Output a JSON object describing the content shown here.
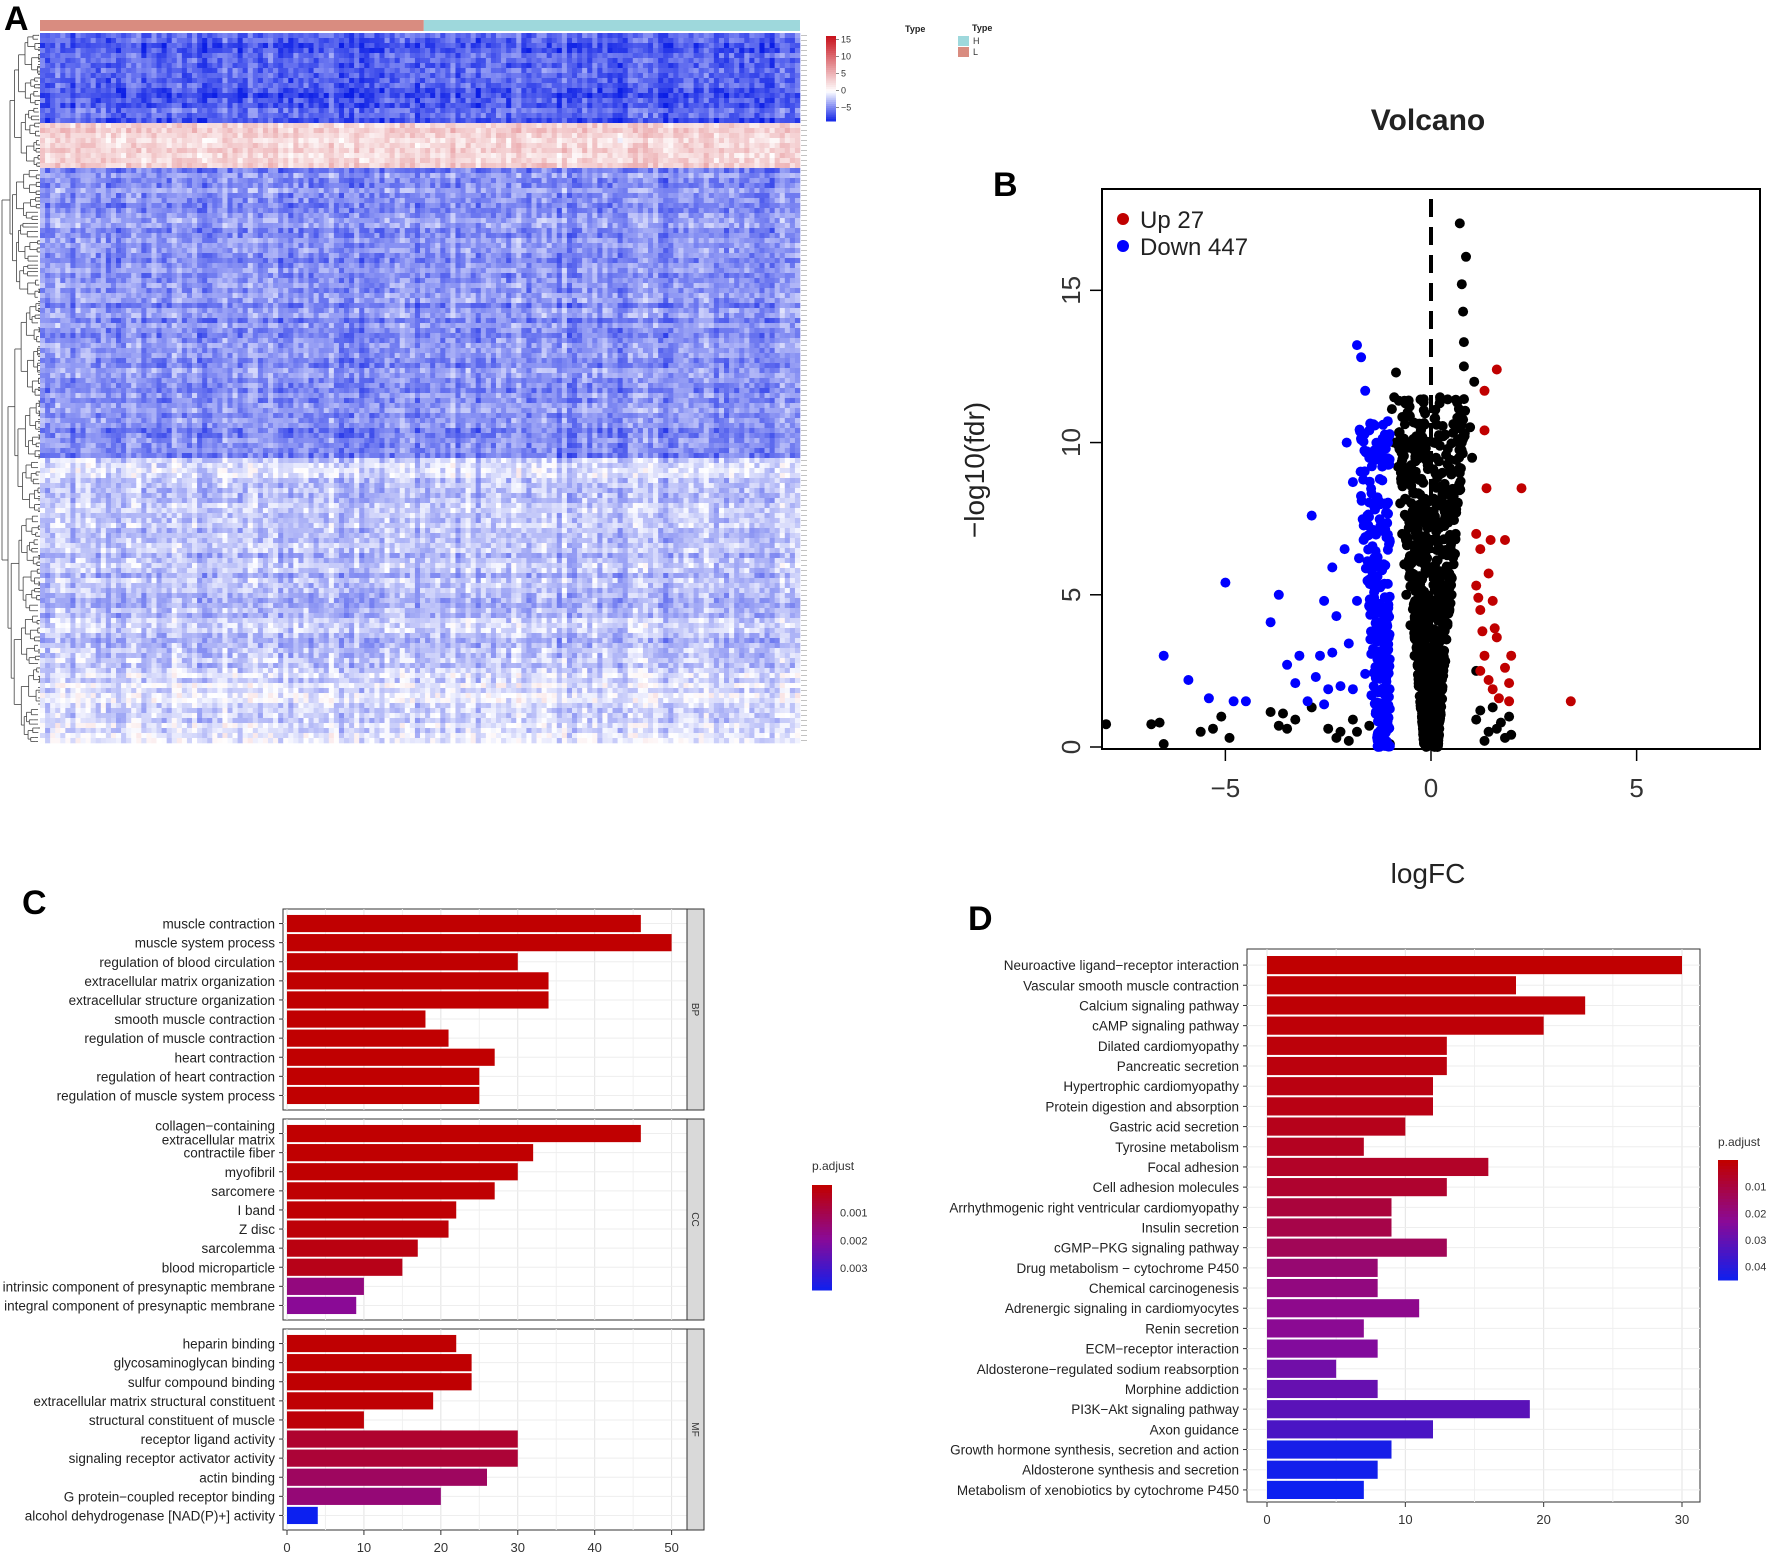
{
  "panels": {
    "a": "A",
    "b": "B",
    "c": "C",
    "d": "D"
  },
  "heatmap": {
    "type_annotation_label": "Type",
    "legend_title": "Type",
    "groups": [
      {
        "name": "L",
        "color": "#d98c80"
      },
      {
        "name": "H",
        "color": "#9ed8dc"
      }
    ],
    "color_scale": {
      "colors": [
        "#0b1ee6",
        "#ffffff",
        "#c8141e"
      ],
      "ticks": [
        15,
        10,
        5,
        0,
        -5
      ],
      "range": [
        -9,
        16
      ]
    }
  },
  "chart_data": [
    {
      "type": "heatmap",
      "title": "",
      "groups": [
        "L",
        "H"
      ],
      "row_blocks": [
        {
          "rows": "1-34",
          "tendency": "low"
        },
        {
          "rows": "35-52",
          "tendency": "high"
        },
        {
          "rows": "53-168",
          "tendency": "low"
        },
        {
          "rows": "169-254",
          "tendency": "mixed"
        },
        {
          "rows": "255-275",
          "tendency": "mixed"
        }
      ]
    },
    {
      "type": "scatter",
      "title": "Volcano",
      "xlabel": "logFC",
      "ylabel": "−log10(fdr)",
      "xlim": [
        -8,
        8
      ],
      "ylim": [
        0,
        18
      ],
      "xticks": [
        "−5",
        "0",
        "5"
      ],
      "yticks": [
        "0",
        "5",
        "10",
        "15"
      ],
      "legend": {
        "position": "top-left",
        "entries": [
          {
            "name": "Up 27",
            "color": "#c00000"
          },
          {
            "name": "Down 447",
            "color": "#0000ff"
          }
        ]
      },
      "series": [
        {
          "name": "Up 27",
          "color": "#c00000",
          "points": [
            [
              3.4,
              1.5
            ],
            [
              2.2,
              8.5
            ],
            [
              1.8,
              6.8
            ],
            [
              1.6,
              12.4
            ],
            [
              1.3,
              10.4
            ],
            [
              1.1,
              7.0
            ],
            [
              1.4,
              5.7
            ],
            [
              1.5,
              4.8
            ],
            [
              1.2,
              4.5
            ],
            [
              1.6,
              3.6
            ],
            [
              1.3,
              3.0
            ],
            [
              1.8,
              2.6
            ],
            [
              1.4,
              2.2
            ],
            [
              1.5,
              1.9
            ],
            [
              1.2,
              2.5
            ],
            [
              1.35,
              8.5
            ],
            [
              1.45,
              6.8
            ],
            [
              1.1,
              5.3
            ],
            [
              1.2,
              6.5
            ],
            [
              1.25,
              3.8
            ],
            [
              1.9,
              2.1
            ],
            [
              1.55,
              3.9
            ],
            [
              1.65,
              1.6
            ],
            [
              1.95,
              3.0
            ],
            [
              1.3,
              11.7
            ],
            [
              1.15,
              4.9
            ],
            [
              1.9,
              1.5
            ]
          ]
        },
        {
          "name": "Down 447",
          "color": "#0000ff",
          "points": [
            [
              -5.0,
              5.4
            ],
            [
              -6.5,
              3.0
            ],
            [
              -5.9,
              2.2
            ],
            [
              -4.8,
              1.5
            ],
            [
              -3.7,
              5.0
            ],
            [
              -3.2,
              3.0
            ],
            [
              -3.9,
              4.1
            ],
            [
              -2.9,
              7.6
            ],
            [
              -2.7,
              3.0
            ],
            [
              -2.6,
              1.4
            ],
            [
              -2.4,
              5.9
            ],
            [
              -1.7,
              12.8
            ],
            [
              -1.6,
              11.7
            ],
            [
              -1.8,
              13.2
            ],
            [
              -1.4,
              10.6
            ],
            [
              -2.3,
              4.3
            ],
            [
              -2.8,
              2.3
            ],
            [
              -3.5,
              2.7
            ],
            [
              -2.5,
              1.9
            ],
            [
              -5.4,
              1.6
            ],
            [
              -4.5,
              1.5
            ],
            [
              -3.0,
              1.5
            ],
            [
              -1.5,
              9.5
            ],
            [
              -1.9,
              8.7
            ],
            [
              -1.3,
              8.2
            ],
            [
              -2.1,
              6.5
            ],
            [
              -1.2,
              7.1
            ],
            [
              -2.0,
              3.4
            ],
            [
              -1.6,
              2.4
            ],
            [
              -2.2,
              2.0
            ],
            [
              -1.8,
              4.8
            ],
            [
              -1.3,
              5.6
            ],
            [
              -2.6,
              4.8
            ],
            [
              -1.1,
              9.8
            ],
            [
              -1.15,
              6.0
            ],
            [
              -1.25,
              3.1
            ],
            [
              -1.9,
              1.9
            ],
            [
              -1.45,
              1.7
            ],
            [
              -2.05,
              10.0
            ],
            [
              -1.55,
              7.6
            ],
            [
              -1.75,
              6.2
            ],
            [
              -2.4,
              3.1
            ],
            [
              -3.3,
              2.1
            ],
            [
              -1.05,
              10.7
            ]
          ]
        },
        {
          "name": "",
          "color": "#000000",
          "points": [
            [
              -7.9,
              0.75
            ],
            [
              -6.8,
              0.75
            ],
            [
              -6.6,
              0.8
            ],
            [
              -6.5,
              0.1
            ],
            [
              -5.6,
              0.5
            ],
            [
              -5.3,
              0.6
            ],
            [
              -5.1,
              1.0
            ],
            [
              -4.9,
              0.3
            ],
            [
              -3.9,
              1.15
            ],
            [
              -3.7,
              0.7
            ],
            [
              -3.6,
              1.1
            ],
            [
              -3.5,
              0.6
            ],
            [
              -3.3,
              0.9
            ],
            [
              -2.9,
              1.3
            ],
            [
              -2.5,
              0.6
            ],
            [
              -2.3,
              0.3
            ],
            [
              -2.0,
              0.2
            ],
            [
              -1.8,
              0.5
            ],
            [
              -1.5,
              0.7
            ],
            [
              -1.3,
              1.3
            ],
            [
              -1.2,
              0.9
            ],
            [
              -1.0,
              0.1
            ],
            [
              -1.9,
              0.9
            ],
            [
              -2.2,
              0.5
            ],
            [
              -0.95,
              11.1
            ],
            [
              -0.85,
              12.3
            ],
            [
              -0.9,
              10.0
            ],
            [
              -0.8,
              9.2
            ],
            [
              -0.75,
              8.0
            ],
            [
              -0.7,
              7.0
            ],
            [
              -0.65,
              6.0
            ],
            [
              -0.6,
              5.0
            ],
            [
              -0.5,
              4.0
            ],
            [
              -0.4,
              3.0
            ],
            [
              -0.3,
              2.0
            ],
            [
              -0.2,
              1.0
            ],
            [
              0.2,
              2.0
            ],
            [
              0.3,
              3.0
            ],
            [
              0.4,
              4.0
            ],
            [
              0.5,
              5.0
            ],
            [
              0.55,
              6.0
            ],
            [
              0.6,
              7.0
            ],
            [
              0.65,
              8.0
            ],
            [
              0.7,
              9.0
            ],
            [
              0.75,
              10.0
            ],
            [
              0.75,
              11.0
            ],
            [
              0.8,
              12.5
            ],
            [
              0.8,
              13.3
            ],
            [
              0.78,
              14.3
            ],
            [
              0.75,
              15.2
            ],
            [
              0.85,
              16.1
            ],
            [
              0.7,
              17.2
            ],
            [
              0.95,
              10.5
            ],
            [
              1.0,
              9.5
            ],
            [
              1.05,
              12.0
            ],
            [
              1.1,
              2.5
            ],
            [
              1.2,
              1.2
            ],
            [
              1.4,
              0.5
            ],
            [
              1.7,
              0.8
            ],
            [
              1.9,
              1.0
            ],
            [
              1.95,
              0.4
            ],
            [
              1.6,
              0.6
            ],
            [
              1.8,
              0.3
            ],
            [
              1.3,
              0.2
            ],
            [
              1.1,
              0.9
            ],
            [
              1.5,
              1.3
            ]
          ]
        }
      ]
    },
    {
      "type": "bar",
      "orientation": "horizontal",
      "title": "",
      "legend_title": "p.adjust",
      "legend_ticks": [
        0.001,
        0.002,
        0.003
      ],
      "color_range": [
        0.0,
        0.0038
      ],
      "xlim": [
        0,
        52
      ],
      "xticks": [
        0,
        10,
        20,
        30,
        40,
        50
      ],
      "facets": [
        {
          "name": "BP",
          "categories": [
            {
              "label": "muscle contraction",
              "value": 46,
              "padj": 1e-05
            },
            {
              "label": "muscle system process",
              "value": 50,
              "padj": 1e-05
            },
            {
              "label": "regulation of blood circulation",
              "value": 30,
              "padj": 1e-05
            },
            {
              "label": "extracellular matrix organization",
              "value": 34,
              "padj": 1e-05
            },
            {
              "label": "extracellular structure organization",
              "value": 34,
              "padj": 1e-05
            },
            {
              "label": "smooth muscle contraction",
              "value": 18,
              "padj": 1e-05
            },
            {
              "label": "regulation of muscle contraction",
              "value": 21,
              "padj": 1e-05
            },
            {
              "label": "heart contraction",
              "value": 27,
              "padj": 1e-05
            },
            {
              "label": "regulation of heart contraction",
              "value": 25,
              "padj": 1e-05
            },
            {
              "label": "regulation of muscle system process",
              "value": 25,
              "padj": 1e-05
            }
          ]
        },
        {
          "name": "CC",
          "categories": [
            {
              "label": "collagen−containing",
              "label2": "extracellular matrix",
              "value": 46,
              "padj": 1e-05
            },
            {
              "label": "contractile fiber",
              "value": 32,
              "padj": 1e-05
            },
            {
              "label": "myofibril",
              "value": 30,
              "padj": 1e-05
            },
            {
              "label": "sarcomere",
              "value": 27,
              "padj": 2e-05
            },
            {
              "label": "I band",
              "value": 22,
              "padj": 5e-05
            },
            {
              "label": "Z disc",
              "value": 21,
              "padj": 0.0001
            },
            {
              "label": "sarcolemma",
              "value": 17,
              "padj": 0.0002
            },
            {
              "label": "blood microparticle",
              "value": 15,
              "padj": 0.0003
            },
            {
              "label": "intrinsic component of presynaptic membrane",
              "value": 10,
              "padj": 0.0016
            },
            {
              "label": "integral component of presynaptic membrane",
              "value": 9,
              "padj": 0.0019
            }
          ]
        },
        {
          "name": "MF",
          "categories": [
            {
              "label": "heparin binding",
              "value": 22,
              "padj": 2e-05
            },
            {
              "label": "glycosaminoglycan binding",
              "value": 24,
              "padj": 3e-05
            },
            {
              "label": "sulfur compound binding",
              "value": 24,
              "padj": 3e-05
            },
            {
              "label": "extracellular matrix structural constituent",
              "value": 19,
              "padj": 5e-05
            },
            {
              "label": "structural constituent of muscle",
              "value": 10,
              "padj": 0.0001
            },
            {
              "label": "receptor ligand activity",
              "value": 30,
              "padj": 0.0006
            },
            {
              "label": "signaling receptor activator activity",
              "value": 30,
              "padj": 0.0007
            },
            {
              "label": "actin binding",
              "value": 26,
              "padj": 0.0012
            },
            {
              "label": "G protein−coupled receptor binding",
              "value": 20,
              "padj": 0.0015
            },
            {
              "label": "alcohol dehydrogenase [NAD(P)+] activity",
              "value": 4,
              "padj": 0.0038
            }
          ]
        }
      ]
    },
    {
      "type": "bar",
      "orientation": "horizontal",
      "title": "",
      "legend_title": "p.adjust",
      "legend_ticks": [
        0.01,
        0.02,
        0.03,
        0.04
      ],
      "color_range": [
        0.0,
        0.045
      ],
      "xlim": [
        0,
        31
      ],
      "xticks": [
        0,
        10,
        20,
        30
      ],
      "categories": [
        {
          "label": "Neuroactive ligand−receptor interaction",
          "value": 30,
          "padj": 0.0001
        },
        {
          "label": "Vascular smooth muscle contraction",
          "value": 18,
          "padj": 0.0005
        },
        {
          "label": "Calcium signaling pathway",
          "value": 23,
          "padj": 0.0008
        },
        {
          "label": "cAMP signaling pathway",
          "value": 20,
          "padj": 0.001
        },
        {
          "label": "Dilated cardiomyopathy",
          "value": 13,
          "padj": 0.0015
        },
        {
          "label": "Pancreatic secretion",
          "value": 13,
          "padj": 0.002
        },
        {
          "label": "Hypertrophic cardiomyopathy",
          "value": 12,
          "padj": 0.0025
        },
        {
          "label": "Protein digestion and absorption",
          "value": 12,
          "padj": 0.003
        },
        {
          "label": "Gastric acid secretion",
          "value": 10,
          "padj": 0.004
        },
        {
          "label": "Tyrosine metabolism",
          "value": 7,
          "padj": 0.005
        },
        {
          "label": "Focal adhesion",
          "value": 16,
          "padj": 0.006
        },
        {
          "label": "Cell adhesion molecules",
          "value": 13,
          "padj": 0.007
        },
        {
          "label": "Arrhythmogenic right ventricular cardiomyopathy",
          "value": 9,
          "padj": 0.009
        },
        {
          "label": "Insulin secretion",
          "value": 9,
          "padj": 0.011
        },
        {
          "label": "cGMP−PKG signaling pathway",
          "value": 13,
          "padj": 0.013
        },
        {
          "label": "Drug metabolism − cytochrome P450",
          "value": 8,
          "padj": 0.017
        },
        {
          "label": "Chemical carcinogenesis",
          "value": 8,
          "padj": 0.019
        },
        {
          "label": "Adrenergic signaling in cardiomyocytes",
          "value": 11,
          "padj": 0.021
        },
        {
          "label": "Renin secretion",
          "value": 7,
          "padj": 0.022
        },
        {
          "label": "ECM−receptor interaction",
          "value": 8,
          "padj": 0.024
        },
        {
          "label": "Aldosterone−regulated sodium reabsorption",
          "value": 5,
          "padj": 0.027
        },
        {
          "label": "Morphine addiction",
          "value": 8,
          "padj": 0.029
        },
        {
          "label": "PI3K−Akt signaling pathway",
          "value": 19,
          "padj": 0.031
        },
        {
          "label": "Axon guidance",
          "value": 12,
          "padj": 0.034
        },
        {
          "label": "Growth hormone synthesis, secretion and action",
          "value": 9,
          "padj": 0.043
        },
        {
          "label": "Aldosterone synthesis and secretion",
          "value": 8,
          "padj": 0.044
        },
        {
          "label": "Metabolism of xenobiotics by cytochrome P450",
          "value": 7,
          "padj": 0.045
        }
      ]
    }
  ]
}
